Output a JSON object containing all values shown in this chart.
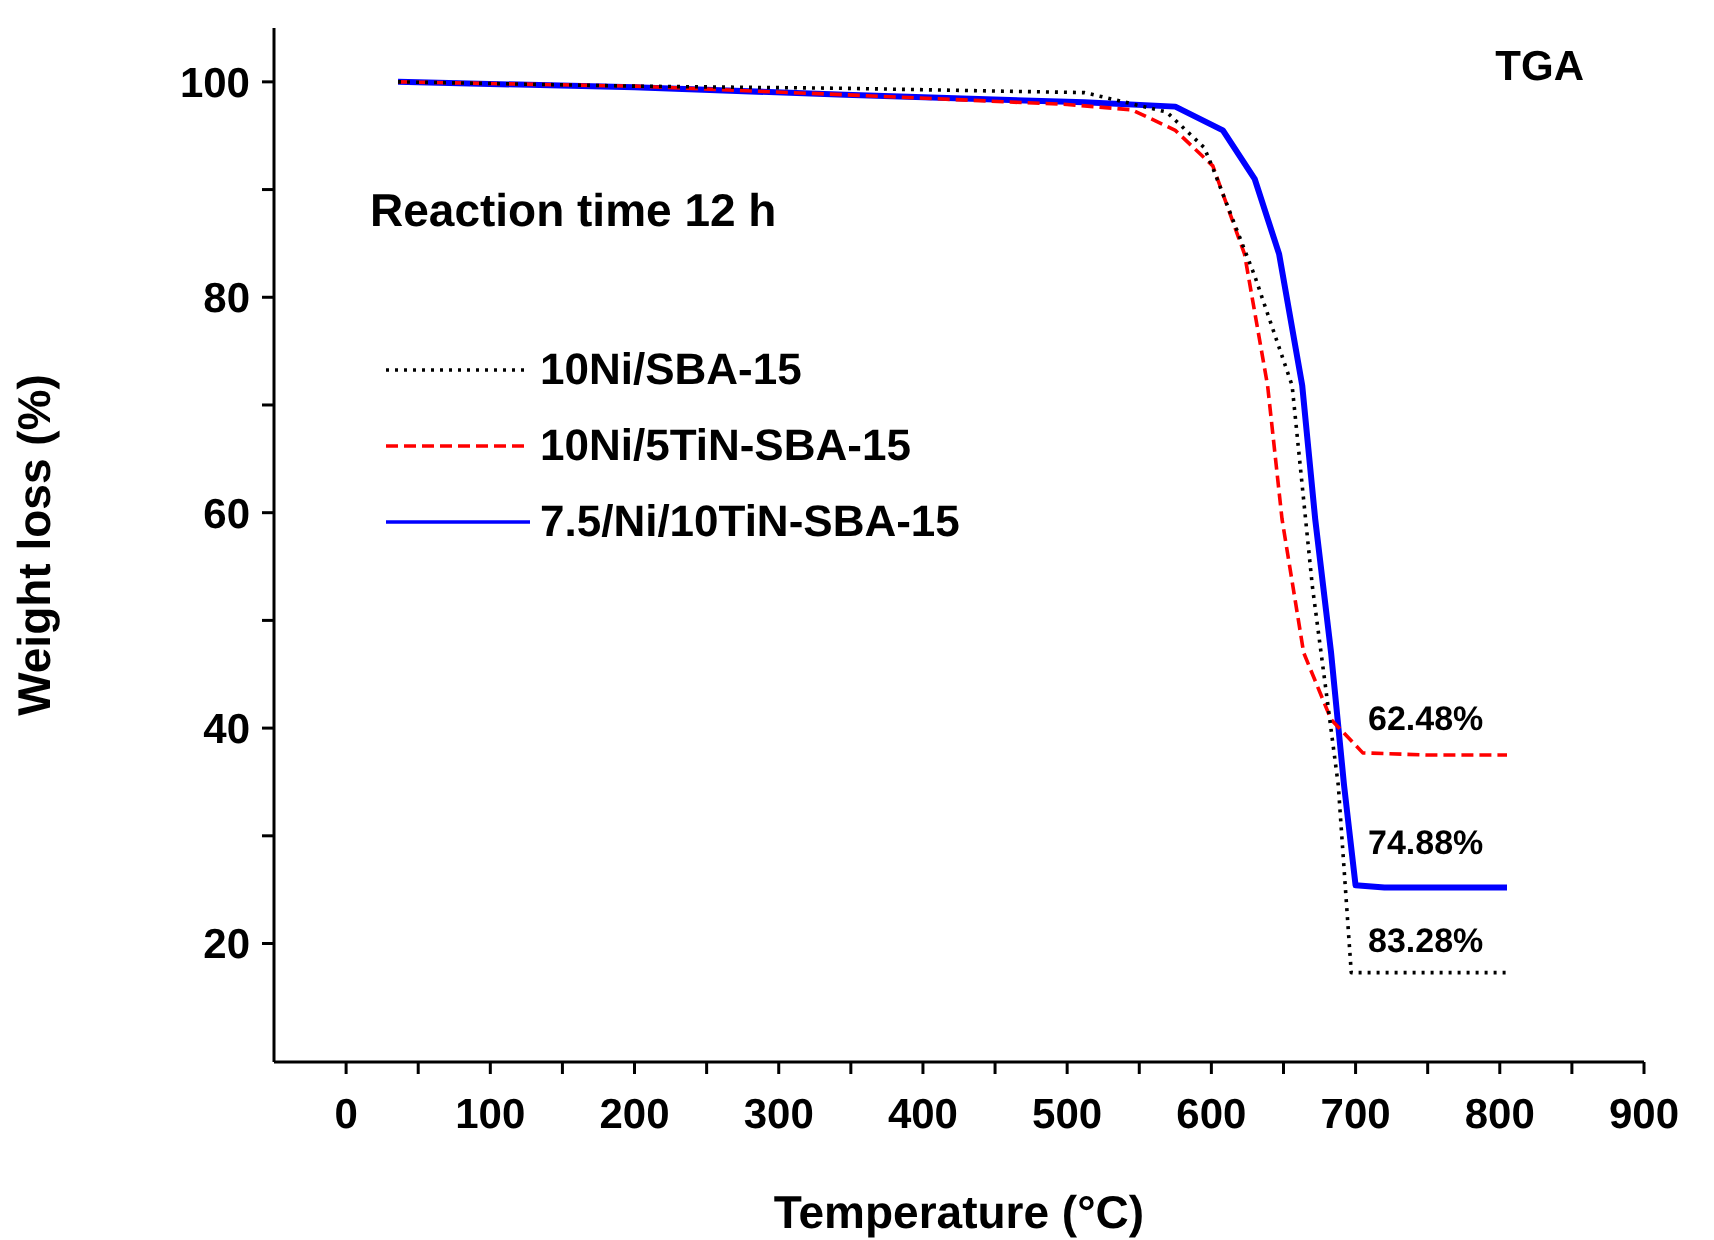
{
  "chart_data": {
    "type": "line",
    "xlabel": "Temperature (°C)",
    "ylabel": "Weight loss (%)",
    "xlim": [
      -50,
      900
    ],
    "ylim": [
      9,
      105
    ],
    "xticks": [
      0,
      {
        "value": 50,
        "label": null
      },
      100,
      {
        "value": 150,
        "label": null
      },
      200,
      {
        "value": 250,
        "label": null
      },
      300,
      {
        "value": 350,
        "label": null
      },
      400,
      {
        "value": 450,
        "label": null
      },
      500,
      {
        "value": 550,
        "label": null
      },
      600,
      {
        "value": 650,
        "label": null
      },
      700,
      {
        "value": 750,
        "label": null
      },
      800,
      {
        "value": 850,
        "label": null
      },
      900
    ],
    "yticks": [
      20,
      {
        "value": 30,
        "label": null
      },
      40,
      {
        "value": 50,
        "label": null
      },
      60,
      {
        "value": 70,
        "label": null
      },
      80,
      {
        "value": 90,
        "label": null
      },
      100
    ],
    "legend": "top left",
    "grid": false,
    "series": [
      {
        "name": "10Ni/SBA-15",
        "color": "#000000",
        "line_style": "dotted",
        "x": [
          36,
          200,
          346,
          512,
          569,
          595,
          601,
          630,
          656,
          670,
          679,
          688,
          697,
          720,
          760,
          805
        ],
        "values": [
          100,
          99.6,
          99.4,
          99.0,
          97.2,
          93.9,
          92,
          82,
          71.8,
          53.2,
          44,
          34.7,
          17.3,
          17.3,
          17.3,
          17.3
        ]
      },
      {
        "name": "10Ni/5TiN-SBA-15",
        "color": "#ff0000",
        "line_style": "dashed",
        "x": [
          36,
          200,
          346,
          500,
          545,
          575,
          601,
          623,
          639,
          649,
          664,
          683,
          705,
          750,
          805
        ],
        "values": [
          100,
          99.6,
          98.8,
          97.9,
          97.4,
          95.5,
          92.2,
          84,
          71.8,
          59.4,
          47,
          40.8,
          37.7,
          37.5,
          37.5
        ]
      },
      {
        "name": "7.5/Ni/10TiN-SBA-15",
        "color": "#0000ff",
        "line_style": "solid",
        "x": [
          36,
          200,
          346,
          512,
          575,
          608,
          630,
          647,
          663,
          672,
          683,
          692,
          700,
          720,
          760,
          805
        ],
        "values": [
          100,
          99.5,
          98.8,
          98.1,
          97.7,
          95.5,
          91,
          84,
          71.8,
          59.4,
          47,
          34.7,
          25.4,
          25.2,
          25.2,
          25.2
        ]
      }
    ],
    "annotations": [
      "TGA",
      "Reaction time 12 h",
      "62.48%",
      "74.88%",
      "83.28%"
    ]
  }
}
